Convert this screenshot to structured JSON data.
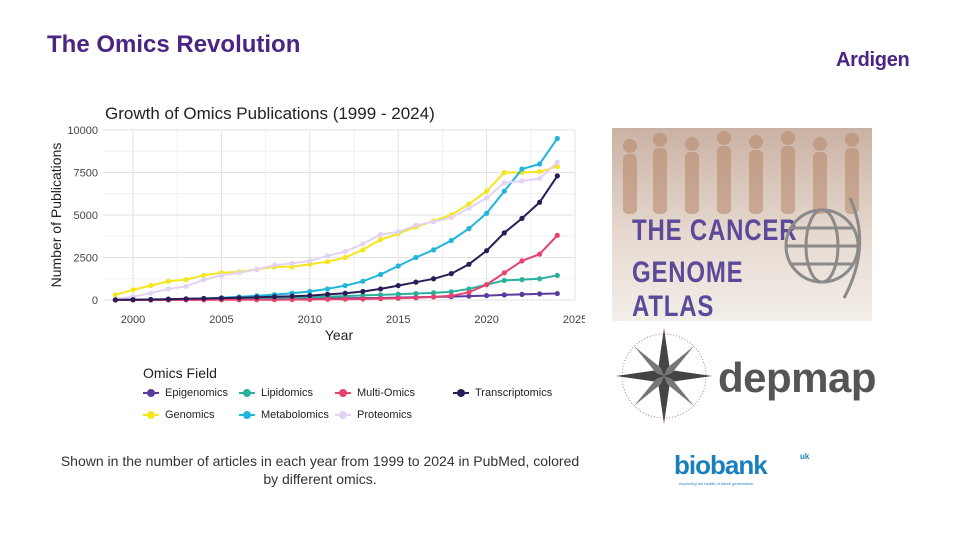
{
  "slide": {
    "title": "The Omics Revolution",
    "brand": "Ardigen",
    "caption": "Shown in the number of articles in each year from 1999 to 2024 in PubMed, colored by different omics."
  },
  "logos": {
    "tcga_line1": "THE CANCER",
    "tcga_line2": "GENOME ATLAS",
    "depmap": "depmap",
    "biobank": "biobank",
    "biobank_suffix": "uk",
    "biobank_tagline": "Improving the health of future generations"
  },
  "chart_data": {
    "type": "line",
    "title": "Growth of Omics Publications (1999 - 2024)",
    "xlabel": "Year",
    "ylabel": "Number of Publications",
    "xlim": [
      1998.3,
      2025
    ],
    "ylim": [
      0,
      10000
    ],
    "xticks": [
      2000,
      2005,
      2010,
      2015,
      2020,
      2025
    ],
    "yticks": [
      0,
      2500,
      5000,
      7500,
      10000
    ],
    "grid": true,
    "legend_title": "Omics Field",
    "legend_position": "bottom",
    "x": [
      1999,
      2000,
      2001,
      2002,
      2003,
      2004,
      2005,
      2006,
      2007,
      2008,
      2009,
      2010,
      2011,
      2012,
      2013,
      2014,
      2015,
      2016,
      2017,
      2018,
      2019,
      2020,
      2021,
      2022,
      2023,
      2024
    ],
    "series": [
      {
        "name": "Epigenomics",
        "color": "#5b3a9e",
        "values": [
          5,
          10,
          15,
          20,
          25,
          30,
          35,
          40,
          50,
          60,
          70,
          80,
          90,
          100,
          110,
          120,
          140,
          160,
          180,
          200,
          230,
          260,
          300,
          330,
          360,
          380
        ]
      },
      {
        "name": "Genomics",
        "color": "#f5e61f",
        "values": [
          300,
          600,
          850,
          1100,
          1200,
          1450,
          1600,
          1650,
          1800,
          1950,
          1950,
          2100,
          2250,
          2500,
          2950,
          3550,
          3900,
          4300,
          4650,
          5000,
          5650,
          6400,
          7500,
          7500,
          7550,
          7850
        ]
      },
      {
        "name": "Lipidomics",
        "color": "#2ab09b",
        "values": [
          5,
          10,
          15,
          20,
          30,
          40,
          60,
          80,
          100,
          120,
          140,
          170,
          200,
          230,
          270,
          300,
          340,
          380,
          420,
          480,
          650,
          900,
          1150,
          1200,
          1250,
          1450
        ]
      },
      {
        "name": "Metabolomics",
        "color": "#1fb5dc",
        "values": [
          10,
          20,
          30,
          40,
          60,
          90,
          130,
          180,
          250,
          320,
          400,
          500,
          650,
          850,
          1100,
          1500,
          2000,
          2500,
          2950,
          3500,
          4200,
          5100,
          6400,
          7700,
          8000,
          9500
        ]
      },
      {
        "name": "Multi-Omics",
        "color": "#e8436f",
        "values": [
          0,
          0,
          0,
          0,
          5,
          5,
          10,
          10,
          15,
          20,
          25,
          30,
          40,
          50,
          60,
          80,
          100,
          130,
          180,
          250,
          450,
          900,
          1600,
          2300,
          2700,
          3800
        ]
      },
      {
        "name": "Proteomics",
        "color": "#e2d3f5",
        "values": [
          50,
          200,
          400,
          650,
          800,
          1200,
          1450,
          1600,
          1800,
          2050,
          2150,
          2300,
          2600,
          2850,
          3300,
          3850,
          4000,
          4400,
          4600,
          4850,
          5400,
          6000,
          6900,
          7000,
          7150,
          8100
        ]
      },
      {
        "name": "Transcriptomics",
        "color": "#2a1d57",
        "values": [
          10,
          20,
          30,
          50,
          70,
          90,
          110,
          130,
          160,
          190,
          220,
          260,
          330,
          400,
          500,
          650,
          850,
          1050,
          1250,
          1550,
          2100,
          2900,
          3950,
          4800,
          5750,
          7300
        ]
      }
    ]
  },
  "legend_order": [
    "Epigenomics",
    "Lipidomics",
    "Multi-Omics",
    "Transcriptomics",
    "Genomics",
    "Metabolomics",
    "Proteomics"
  ]
}
